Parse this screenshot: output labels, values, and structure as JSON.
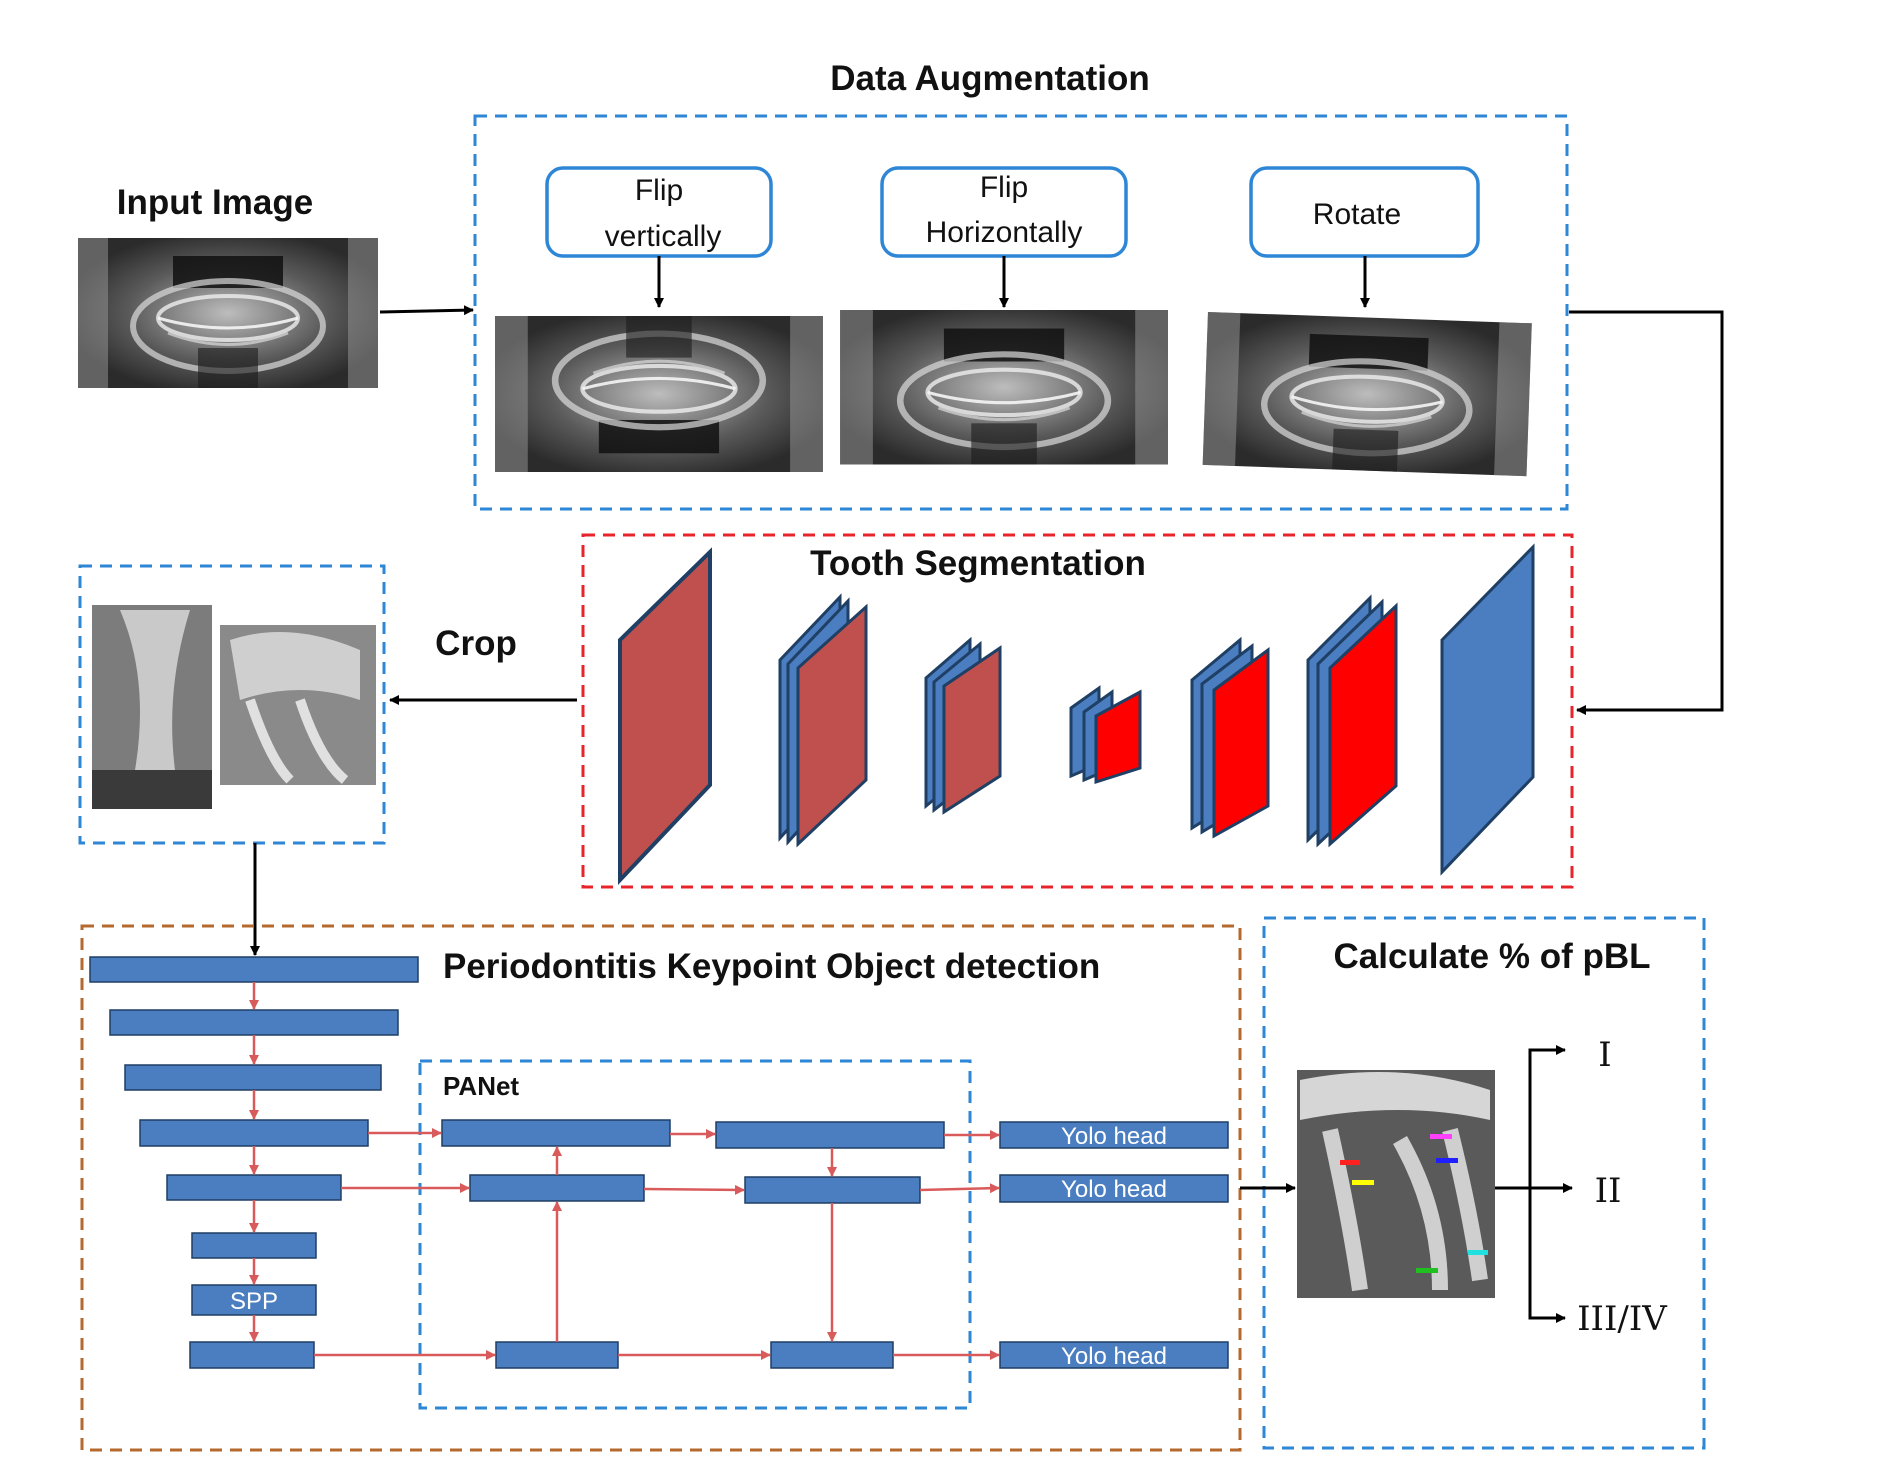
{
  "input_section": {
    "title": "Input Image"
  },
  "augmentation": {
    "title": "Data Augmentation",
    "ops": [
      {
        "line1": "Flip",
        "line2": "vertically"
      },
      {
        "line1": "Flip",
        "line2": "Horizontally"
      },
      {
        "line1": "Rotate",
        "line2": ""
      }
    ]
  },
  "segmentation": {
    "title": "Tooth Segmentation"
  },
  "crop": {
    "label": "Crop"
  },
  "detection": {
    "title": "Periodontitis Keypoint Object detection",
    "panet_label": "PANet",
    "spp_label": "SPP",
    "yolo_heads": [
      "Yolo head",
      "Yolo head",
      "Yolo head"
    ]
  },
  "pbl": {
    "title": "Calculate % of pBL",
    "grades": [
      "I",
      "II",
      "III/IV"
    ]
  },
  "colors": {
    "blue_dash": "#2e86d6",
    "red_dash": "#e8242b",
    "brown_dash": "#b5692e",
    "box_blue": "#4a7ec1",
    "arrow_red": "#d95a5a",
    "layer_red": "#c0504d",
    "layer_bright_red": "#ff0000",
    "layer_dark": "#1f3f64"
  }
}
